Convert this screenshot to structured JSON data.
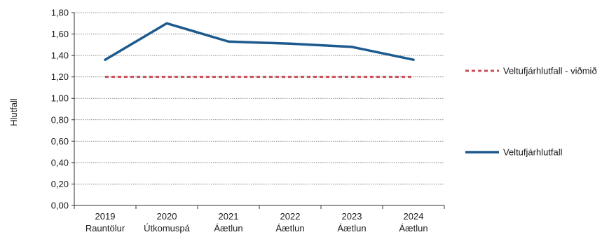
{
  "chart_data": {
    "type": "line",
    "title": "",
    "xlabel": "",
    "ylabel": "Hlutfall",
    "ylim": [
      0,
      1.8
    ],
    "ytick_step": 0.2,
    "ytick_labels": [
      "0,00",
      "0,20",
      "0,40",
      "0,60",
      "0,80",
      "1,00",
      "1,20",
      "1,40",
      "1,60",
      "1,80"
    ],
    "grid": true,
    "legend_position": "right",
    "categories": [
      {
        "year": "2019",
        "sub": "Rauntölur"
      },
      {
        "year": "2020",
        "sub": "Útkomuspá"
      },
      {
        "year": "2021",
        "sub": "Áætlun"
      },
      {
        "year": "2022",
        "sub": "Áætlun"
      },
      {
        "year": "2023",
        "sub": "Áætlun"
      },
      {
        "year": "2024",
        "sub": "Áætlun"
      }
    ],
    "series": [
      {
        "name": "Veltufjárhlutfall - viðmið",
        "values": [
          1.2,
          1.2,
          1.2,
          1.2,
          1.2,
          1.2
        ],
        "color": "#c9505a",
        "style": "dashed"
      },
      {
        "name": "Veltufjárhlutfall",
        "values": [
          1.36,
          1.7,
          1.53,
          1.51,
          1.48,
          1.36
        ],
        "color": "#1d5a8e",
        "style": "solid"
      }
    ]
  }
}
